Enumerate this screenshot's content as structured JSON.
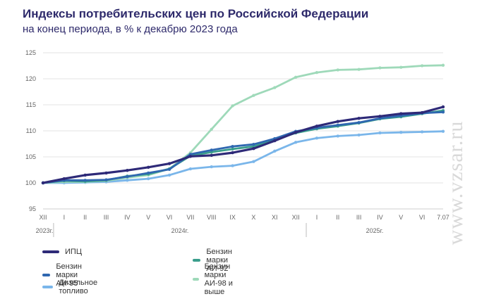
{
  "header": {
    "title": "Индексы потребительских цен по Российской Федерации",
    "subtitle": "на конец периода, в % к декабрю 2023 года"
  },
  "watermark": "www.vzsar.ru",
  "colors": {
    "cpi": "#2e2a78",
    "ai92": "#3a9e8c",
    "ai95": "#2f67b0",
    "ai98": "#9ed9b9",
    "diesel": "#7ab6ea"
  },
  "chart_data": {
    "type": "line",
    "title": "Индексы потребительских цен по Российской Федерации",
    "subtitle": "на конец периода, в % к декабрю 2023 года",
    "x": [
      "XII",
      "I",
      "II",
      "III",
      "IV",
      "V",
      "VI",
      "VII",
      "VIII",
      "IX",
      "X",
      "XI",
      "XII",
      "I",
      "II",
      "III",
      "IV",
      "V",
      "VI",
      "7.07"
    ],
    "year_groups": [
      {
        "label": "2023г.",
        "from": 0,
        "to": 0
      },
      {
        "label": "2024г.",
        "from": 1,
        "to": 12
      },
      {
        "label": "2025г.",
        "from": 13,
        "to": 19
      }
    ],
    "ylim": [
      95,
      125
    ],
    "yticks": [
      95,
      100,
      105,
      110,
      115,
      120,
      125
    ],
    "grid": true,
    "legend_position": "bottom",
    "series": [
      {
        "key": "cpi",
        "name": "ИПЦ",
        "values": [
          100,
          100.8,
          101.5,
          101.9,
          102.4,
          103.0,
          103.7,
          105.1,
          105.3,
          105.8,
          106.6,
          108.1,
          109.7,
          110.9,
          111.8,
          112.4,
          112.8,
          113.3,
          113.5,
          114.6
        ]
      },
      {
        "key": "ai92",
        "name": "Бензин марки АИ-92",
        "values": [
          100,
          100.4,
          100.3,
          100.5,
          101.3,
          101.7,
          102.7,
          105.2,
          105.9,
          106.5,
          107.0,
          108.3,
          109.6,
          110.4,
          110.9,
          111.5,
          112.3,
          112.7,
          113.3,
          113.9
        ]
      },
      {
        "key": "ai95",
        "name": "Бензин марки АИ-95",
        "values": [
          100,
          100.5,
          100.5,
          100.6,
          101.2,
          101.9,
          102.6,
          105.5,
          106.3,
          107.0,
          107.4,
          108.5,
          109.9,
          110.6,
          111.1,
          111.6,
          112.4,
          112.9,
          113.4,
          113.6
        ]
      },
      {
        "key": "ai98",
        "name": "Бензин марки АИ-98 и выше",
        "values": [
          100,
          100.2,
          100.2,
          100.4,
          101.0,
          101.5,
          102.7,
          105.8,
          110.3,
          114.8,
          116.8,
          118.3,
          120.3,
          121.2,
          121.7,
          121.8,
          122.1,
          122.2,
          122.5,
          122.6
        ]
      },
      {
        "key": "diesel",
        "name": "Дизельное топливо",
        "values": [
          100,
          100.0,
          100.1,
          100.2,
          100.5,
          100.8,
          101.5,
          102.7,
          103.1,
          103.3,
          104.1,
          106.1,
          107.8,
          108.6,
          109.0,
          109.2,
          109.6,
          109.7,
          109.8,
          109.9
        ]
      }
    ],
    "legend_order": [
      "cpi",
      "ai92",
      "ai95",
      "ai98",
      "diesel"
    ]
  }
}
